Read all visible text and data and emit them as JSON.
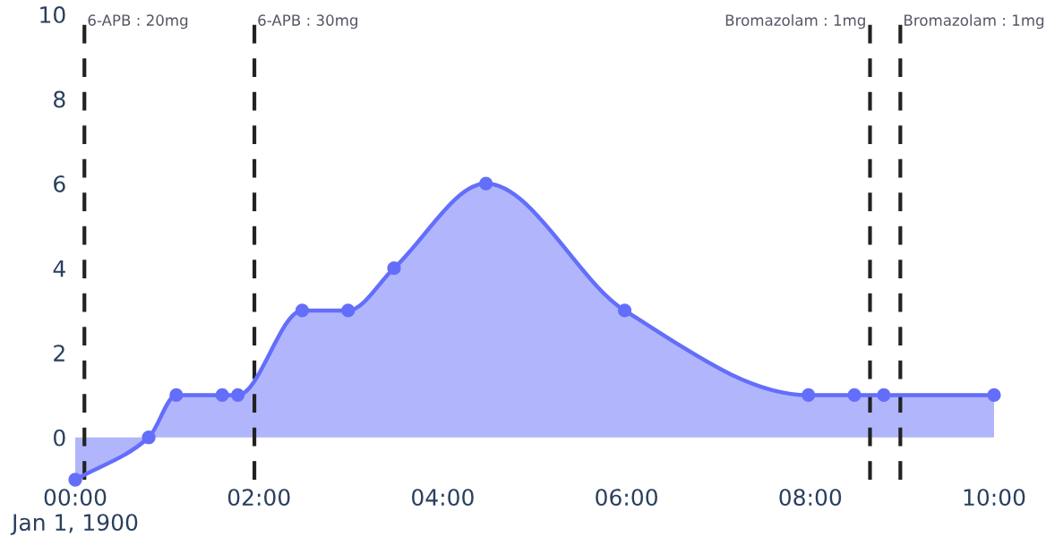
{
  "chart_data": {
    "type": "area",
    "x": [
      0,
      0.8,
      1.1,
      1.6,
      1.77,
      2.47,
      2.97,
      3.47,
      4.47,
      5.98,
      7.98,
      8.48,
      8.8,
      10
    ],
    "series": [
      {
        "color": "#636efa",
        "values": [
          -1,
          0,
          1,
          1,
          1,
          3,
          3,
          4,
          6,
          3,
          1,
          1,
          1,
          1
        ]
      }
    ],
    "xlim": [
      0,
      10
    ],
    "ylim": [
      -1,
      10
    ],
    "annotations": [
      {
        "text": "6-APB : 20mg",
        "x": 0.1,
        "y": 10
      },
      {
        "text": "6-APB : 30mg",
        "x": 1.95,
        "y": 10
      },
      {
        "text": "Bromazolam : 1mg",
        "x": 8.65,
        "y": 10
      },
      {
        "text": "Bromazolam : 1mg",
        "x": 8.98,
        "y": 10
      }
    ],
    "xticks": [
      {
        "value": 0,
        "label": "00:00\nJan 1, 1900"
      },
      {
        "value": 2,
        "label": "02:00"
      },
      {
        "value": 4,
        "label": "04:00"
      },
      {
        "value": 6,
        "label": "06:00"
      },
      {
        "value": 8,
        "label": "08:00"
      },
      {
        "value": 10,
        "label": "10:00"
      }
    ],
    "yticks": [
      0,
      2,
      4,
      6,
      8,
      10
    ],
    "marker": "circle",
    "line_style": "solid",
    "grid": false,
    "ref_lines": [
      {
        "axis": "x",
        "value": 0.1,
        "color": "#222222",
        "line_style": "dashed"
      },
      {
        "axis": "x",
        "value": 1.95,
        "color": "#222222",
        "line_style": "dashed"
      },
      {
        "axis": "x",
        "value": 8.65,
        "color": "#222222",
        "line_style": "dashed"
      },
      {
        "axis": "x",
        "value": 8.98,
        "color": "#222222",
        "line_style": "dashed"
      }
    ]
  }
}
